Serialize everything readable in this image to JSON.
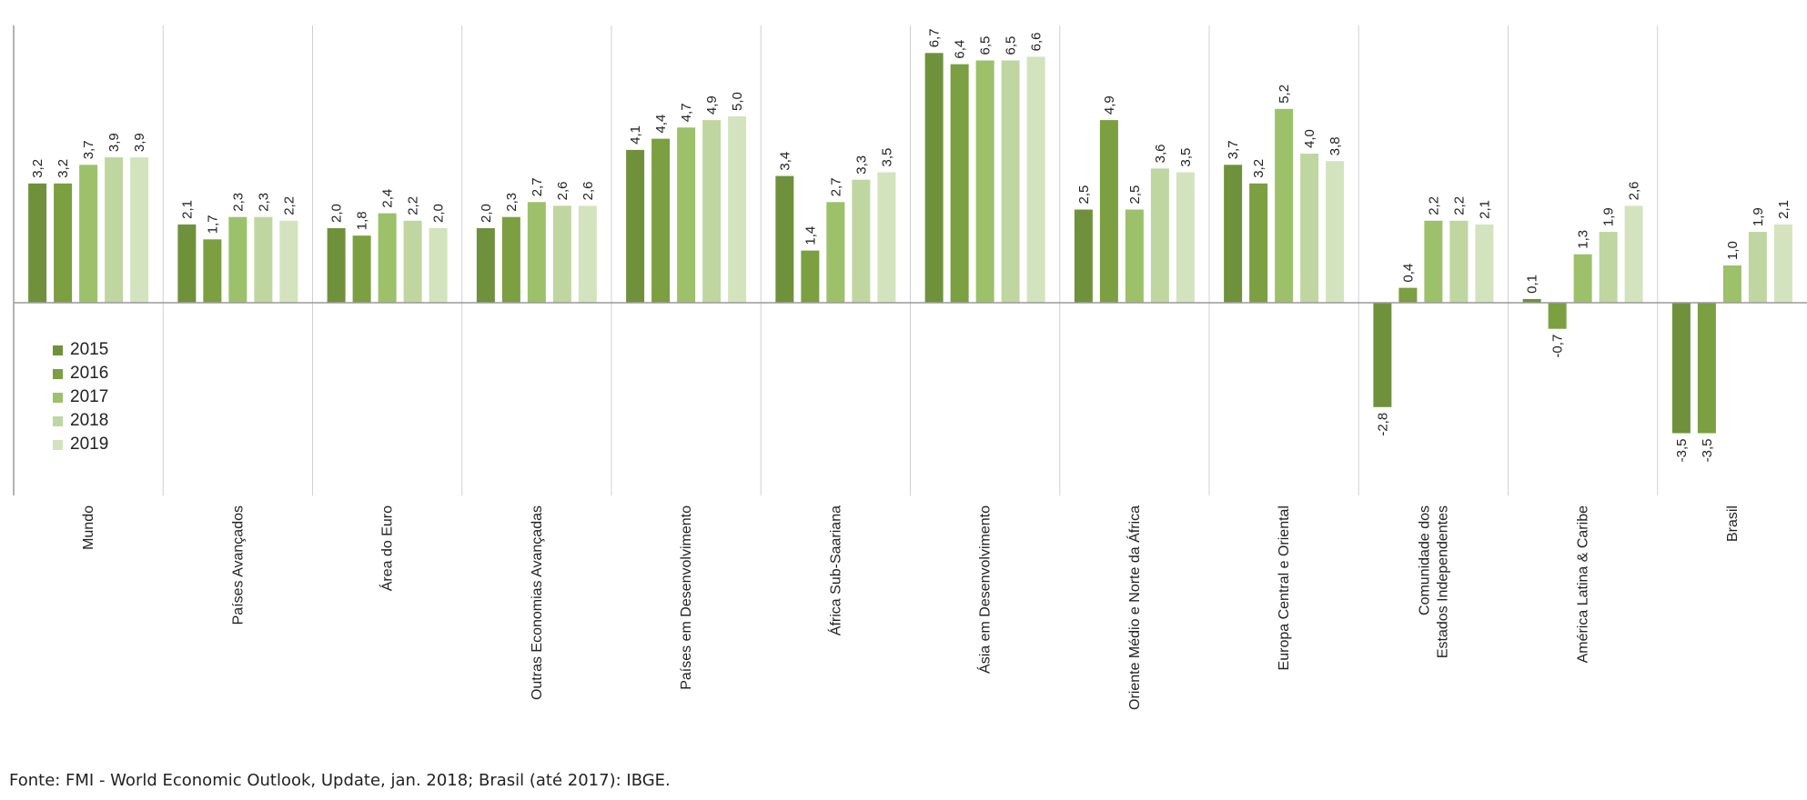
{
  "chart_data": {
    "type": "bar",
    "categories": [
      "Mundo",
      "Países Avançados",
      "Área do Euro",
      "Outras Economias Avançadas",
      "Países em Desenvolvimento",
      "África Sub-Saariana",
      "Ásia em Desenvolvimento",
      "Oriente Médio e Norte da África",
      "Europa Central e Oriental",
      [
        "Comunidade dos",
        "Estados Independentes"
      ],
      "América Latina & Caribe",
      "Brasil"
    ],
    "series": [
      {
        "name": "2015",
        "color": "#70913c",
        "values": [
          3.2,
          2.1,
          2.0,
          2.0,
          4.1,
          3.4,
          6.7,
          2.5,
          3.7,
          -2.8,
          0.1,
          -3.5
        ]
      },
      {
        "name": "2016",
        "color": "#7b9f41",
        "values": [
          3.2,
          1.7,
          1.8,
          2.3,
          4.4,
          1.4,
          6.4,
          4.9,
          3.2,
          0.4,
          -0.7,
          -3.5
        ]
      },
      {
        "name": "2017",
        "color": "#9dc06a",
        "values": [
          3.7,
          2.3,
          2.4,
          2.7,
          4.7,
          2.7,
          6.5,
          2.5,
          5.2,
          2.2,
          1.3,
          1.0
        ]
      },
      {
        "name": "2018",
        "color": "#bfd6a0",
        "values": [
          3.9,
          2.3,
          2.2,
          2.6,
          4.9,
          3.3,
          6.5,
          3.6,
          4.0,
          2.2,
          1.9,
          1.9
        ]
      },
      {
        "name": "2019",
        "color": "#d3e3bd",
        "values": [
          3.9,
          2.2,
          2.0,
          2.6,
          5.0,
          3.5,
          6.6,
          3.5,
          3.8,
          2.1,
          2.6,
          2.1
        ]
      }
    ],
    "value_labels": [
      [
        "3,2",
        "3,2",
        "3,7",
        "3,9",
        "3,9"
      ],
      [
        "2,1",
        "1,7",
        "2,3",
        "2,3",
        "2,2"
      ],
      [
        "2,0",
        "1,8",
        "2,4",
        "2,2",
        "2,0"
      ],
      [
        "2,0",
        "2,3",
        "2,7",
        "2,6",
        "2,6"
      ],
      [
        "4,1",
        "4,4",
        "4,7",
        "4,9",
        "5,0"
      ],
      [
        "3,4",
        "1,4",
        "2,7",
        "3,3",
        "3,5"
      ],
      [
        "6,7",
        "6,4",
        "6,5",
        "6,5",
        "6,6"
      ],
      [
        "2,5",
        "4,9",
        "2,5",
        "3,6",
        "3,5"
      ],
      [
        "3,7",
        "3,2",
        "5,2",
        "4,0",
        "3,8"
      ],
      [
        "-2,8",
        "0,4",
        "2,2",
        "2,2",
        "2,1"
      ],
      [
        "0,1",
        "-0,7",
        "1,3",
        "1,9",
        "2,6"
      ],
      [
        "-3,5",
        "-3,5",
        "1,0",
        "1,9",
        "2,1"
      ]
    ],
    "ylim": [
      -4.2,
      7.0
    ],
    "title": "",
    "xlabel": "",
    "ylabel": "",
    "legend_position": "bottom-left inside plot"
  },
  "source_note": "Fonte: FMI - World Economic Outlook, Update, jan. 2018; Brasil (até 2017): IBGE."
}
